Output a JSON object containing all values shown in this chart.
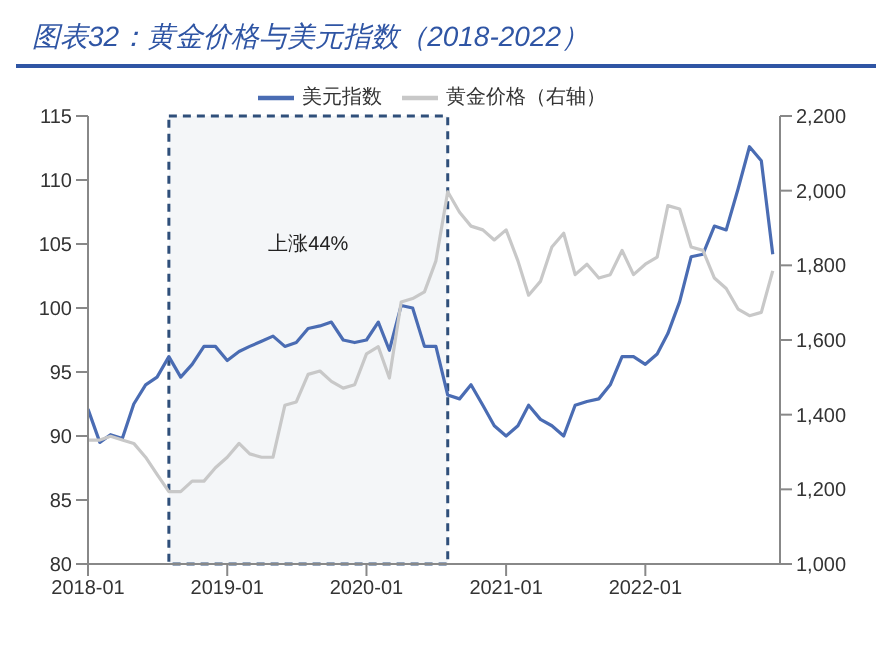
{
  "chart_data": {
    "type": "line",
    "title": "图表32：黄金价格与美元指数（2018-2022）",
    "x": [
      "2018-01",
      "2018-02",
      "2018-03",
      "2018-04",
      "2018-05",
      "2018-06",
      "2018-07",
      "2018-08",
      "2018-09",
      "2018-10",
      "2018-11",
      "2018-12",
      "2019-01",
      "2019-02",
      "2019-03",
      "2019-04",
      "2019-05",
      "2019-06",
      "2019-07",
      "2019-08",
      "2019-09",
      "2019-10",
      "2019-11",
      "2019-12",
      "2020-01",
      "2020-02",
      "2020-03",
      "2020-04",
      "2020-05",
      "2020-06",
      "2020-07",
      "2020-08",
      "2020-09",
      "2020-10",
      "2020-11",
      "2020-12",
      "2021-01",
      "2021-02",
      "2021-03",
      "2021-04",
      "2021-05",
      "2021-06",
      "2021-07",
      "2021-08",
      "2021-09",
      "2021-10",
      "2021-11",
      "2021-12",
      "2022-01",
      "2022-02",
      "2022-03",
      "2022-04",
      "2022-05",
      "2022-06",
      "2022-07",
      "2022-08",
      "2022-09",
      "2022-10",
      "2022-11",
      "2022-12"
    ],
    "series": [
      {
        "name": "美元指数",
        "color": "#4a6cb3",
        "values": [
          92.1,
          89.5,
          90.1,
          89.8,
          92.5,
          94.0,
          94.6,
          96.2,
          94.6,
          95.6,
          97.0,
          97.0,
          95.9,
          96.6,
          97.0,
          97.4,
          97.8,
          97.0,
          97.3,
          98.4,
          98.6,
          98.9,
          97.5,
          97.3,
          97.5,
          98.9,
          96.7,
          100.2,
          100.0,
          97.0,
          97.0,
          93.2,
          92.9,
          94.0,
          92.4,
          90.8,
          90.0,
          90.8,
          92.4,
          91.3,
          90.8,
          90.0,
          92.4,
          92.7,
          92.9,
          94.0,
          96.2,
          96.2,
          95.6,
          96.4,
          98.0,
          100.5,
          104.0,
          104.2,
          106.4,
          106.1,
          109.3,
          112.6,
          111.5,
          104.2
        ]
      },
      {
        "name": "黄金价格（右轴）",
        "color": "#c8c8c8",
        "axis": "y2",
        "values": [
          1332,
          1332,
          1342,
          1332,
          1323,
          1286,
          1240,
          1194,
          1194,
          1222,
          1222,
          1258,
          1286,
          1323,
          1295,
          1286,
          1286,
          1425,
          1434,
          1508,
          1517,
          1489,
          1471,
          1480,
          1563,
          1582,
          1498,
          1702,
          1711,
          1729,
          1812,
          1997,
          1942,
          1905,
          1895,
          1868,
          1895,
          1812,
          1720,
          1757,
          1849,
          1886,
          1775,
          1803,
          1766,
          1775,
          1840,
          1775,
          1803,
          1822,
          1960,
          1951,
          1849,
          1840,
          1766,
          1738,
          1683,
          1665,
          1674,
          1785
        ]
      }
    ],
    "xlim": [
      "2018-01",
      "2022-12-20"
    ],
    "xticks": [
      "2018-01",
      "2019-01",
      "2020-01",
      "2021-01",
      "2022-01"
    ],
    "ylim": [
      80,
      115
    ],
    "yticks": [
      80,
      85,
      90,
      95,
      100,
      105,
      110,
      115
    ],
    "y2lim": [
      1000,
      2200
    ],
    "y2ticks": [
      {
        "value": 1000,
        "label": "1,000"
      },
      {
        "value": 1200,
        "label": "1,200"
      },
      {
        "value": 1400,
        "label": "1,400"
      },
      {
        "value": 1600,
        "label": "1,600"
      },
      {
        "value": 1800,
        "label": "1,800"
      },
      {
        "value": 2000,
        "label": "2,000"
      },
      {
        "value": 2200,
        "label": "2,200"
      }
    ],
    "bands": [
      {
        "axis": "x",
        "from": "2018-08",
        "to": "2020-08",
        "label": "上涨44%",
        "color": "#2f4f7a"
      }
    ],
    "legend": "top",
    "grid": false,
    "marker": "none",
    "line_style": "solid"
  }
}
